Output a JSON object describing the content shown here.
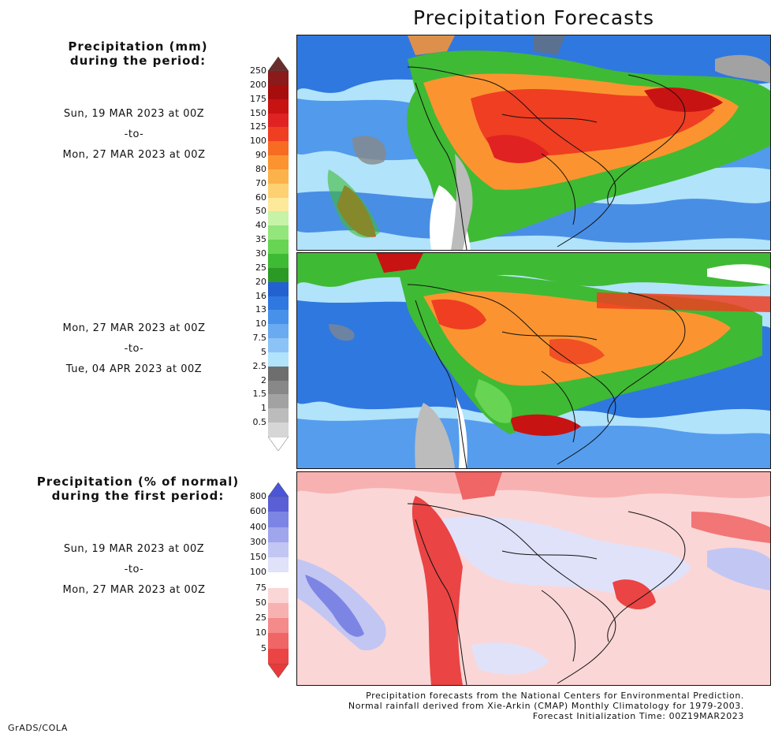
{
  "title": "Precipitation Forecasts",
  "legend_amount": {
    "heading_line1": "Precipitation (mm)",
    "heading_line2": "during the period:",
    "tick_labels": [
      "250",
      "200",
      "175",
      "150",
      "125",
      "100",
      "90",
      "80",
      "70",
      "60",
      "50",
      "40",
      "35",
      "30",
      "25",
      "20",
      "16",
      "13",
      "10",
      "7.5",
      "5",
      "2.5",
      "2",
      "1.5",
      "1",
      "0.5"
    ],
    "colors": [
      "#8b1a1a",
      "#a80d0d",
      "#c81313",
      "#e02222",
      "#ef3e22",
      "#f76b22",
      "#fb9430",
      "#fcb24a",
      "#fdd072",
      "#fde99a",
      "#c6f3a8",
      "#93e67b",
      "#67d453",
      "#3fba34",
      "#2a9a25",
      "#2361d0",
      "#2f78e0",
      "#4791ea",
      "#69aaf0",
      "#8cc3f6",
      "#b1e3fb",
      "#6e6e6e",
      "#888888",
      "#a2a2a2",
      "#bcbcbc",
      "#d6d6d6"
    ],
    "top_cap_color": "#6b2c2c",
    "bottom_cap_color": "#ffffff"
  },
  "period1": {
    "line1": "Sun, 19 MAR 2023 at 00Z",
    "line2": "-to-",
    "line3": "Mon, 27 MAR 2023 at 00Z"
  },
  "period2": {
    "line1": "Mon, 27 MAR 2023 at 00Z",
    "line2": "-to-",
    "line3": "Tue, 04 APR 2023 at 00Z"
  },
  "legend_percent": {
    "heading_line1": "Precipitation (% of normal)",
    "heading_line2": "during the first period:",
    "tick_labels": [
      "800",
      "600",
      "400",
      "300",
      "150",
      "100",
      "75",
      "50",
      "25",
      "10",
      "5"
    ],
    "colors": [
      "#5a5fd6",
      "#7d85e4",
      "#a0a6ec",
      "#c2c6f3",
      "#e0e2fa",
      "#ffffff",
      "#fbd6d6",
      "#f8b1b1",
      "#f48a8a",
      "#f06565",
      "#ea4444"
    ],
    "top_cap_color": "#4a55d8",
    "bottom_cap_color": "#e83a3a"
  },
  "period3": {
    "line1": "Sun, 19 MAR 2023 at 00Z",
    "line2": "-to-",
    "line3": "Mon, 27 MAR 2023 at 00Z"
  },
  "footnote": {
    "line1": "Precipitation forecasts from the National Centers for Environmental Prediction.",
    "line2": "Normal rainfall derived from Xie-Arkin (CMAP) Monthly Climatology for 1979-2003.",
    "line3": "Forecast Initialization Time: 00Z19MAR2023"
  },
  "credit": "GrADS/COLA"
}
